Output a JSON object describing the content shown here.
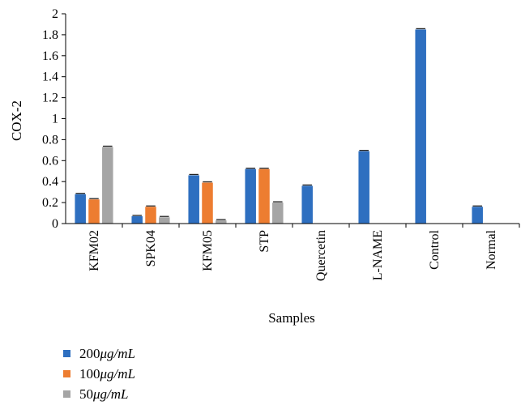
{
  "chart_data": {
    "type": "bar",
    "ylabel": "COX-2",
    "xlabel": "Samples",
    "ylim": [
      0,
      2
    ],
    "yticks": [
      "0",
      "0.2",
      "0.4",
      "0.6",
      "0.8",
      "1",
      "1.2",
      "1.4",
      "1.6",
      "1.8",
      "2"
    ],
    "categories": [
      "KFM02",
      "SPK04",
      "KFM05",
      "STP",
      "Quercetin",
      "L-NAME",
      "Control",
      "Normal"
    ],
    "series": [
      {
        "name_value": "200",
        "name_unit": "μg/mL",
        "color": "#2e6fc0",
        "values": [
          0.28,
          0.07,
          0.46,
          0.52,
          0.36,
          0.69,
          1.85,
          0.16
        ]
      },
      {
        "name_value": "100",
        "name_unit": "μg/mL",
        "color": "#ed7d31",
        "values": [
          0.23,
          0.16,
          0.39,
          0.52,
          null,
          null,
          null,
          null
        ]
      },
      {
        "name_value": "50",
        "name_unit": "μg/mL",
        "color": "#a5a5a5",
        "values": [
          0.73,
          0.06,
          0.03,
          0.2,
          null,
          null,
          null,
          null
        ]
      }
    ],
    "legend_position": "bottom-left",
    "grid": false,
    "error_bars": true
  }
}
